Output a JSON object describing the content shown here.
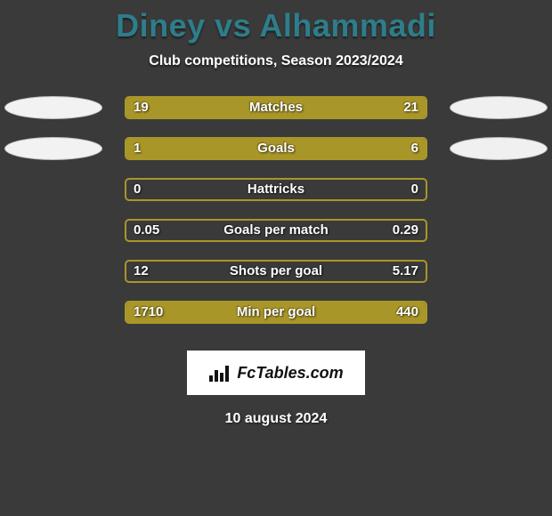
{
  "title": "Diney vs Alhammadi",
  "subtitle": "Club competitions, Season 2023/2024",
  "date": "10 august 2024",
  "logo_text": "FcTables.com",
  "colors": {
    "left_fill": "#a99628",
    "right_fill": "#a99628",
    "track": "#3a3a3a",
    "ellipse_left_bg": "#f2f2f2",
    "ellipse_left_border": "#bfbfbf",
    "ellipse_right_bg": "#f0f0f0",
    "ellipse_right_border": "#b8b8b8",
    "title_color": "#2e7d8a"
  },
  "stats": [
    {
      "label": "Matches",
      "left_text": "19",
      "right_text": "21",
      "left_share": 0.475,
      "right_share": 0.525,
      "show_ellipses": true
    },
    {
      "label": "Goals",
      "left_text": "1",
      "right_text": "6",
      "left_share": 0.18,
      "right_share": 0.82,
      "show_ellipses": true
    },
    {
      "label": "Hattricks",
      "left_text": "0",
      "right_text": "0",
      "left_share": 0.0,
      "right_share": 0.0,
      "show_ellipses": false
    },
    {
      "label": "Goals per match",
      "left_text": "0.05",
      "right_text": "0.29",
      "left_share": 0.0,
      "right_share": 0.0,
      "show_ellipses": false
    },
    {
      "label": "Shots per goal",
      "left_text": "12",
      "right_text": "5.17",
      "left_share": 0.0,
      "right_share": 0.0,
      "show_ellipses": false
    },
    {
      "label": "Min per goal",
      "left_text": "1710",
      "right_text": "440",
      "left_share": 0.795,
      "right_share": 0.205,
      "show_ellipses": false
    }
  ]
}
